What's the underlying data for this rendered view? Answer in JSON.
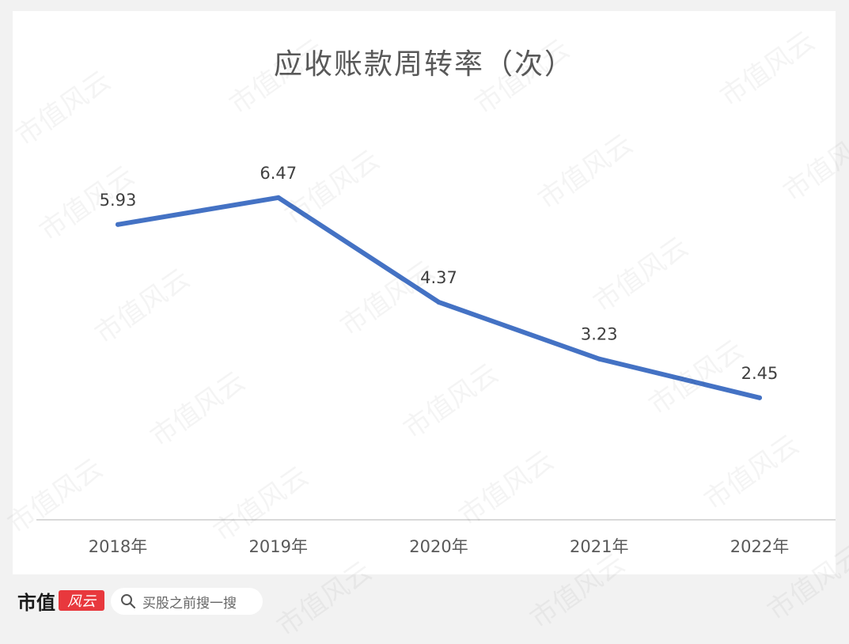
{
  "chart_data": {
    "type": "line",
    "title": "应收账款周转率（次）",
    "categories": [
      "2018年",
      "2019年",
      "2020年",
      "2021年",
      "2022年"
    ],
    "series": [
      {
        "values": [
          5.93,
          6.47,
          4.37,
          3.23,
          2.45
        ],
        "color": "#4472c4"
      }
    ],
    "data_labels": [
      "5.93",
      "6.47",
      "4.37",
      "3.23",
      "2.45"
    ],
    "ylim": [
      0,
      8.5
    ],
    "grid": false,
    "axis_color": "#d9d9d9"
  },
  "footer": {
    "brand_name": "市值",
    "brand_logo_text": "风云",
    "brand_color": "#e8383d",
    "search_placeholder": "买股之前搜一搜"
  },
  "watermark_text": "市值风云"
}
